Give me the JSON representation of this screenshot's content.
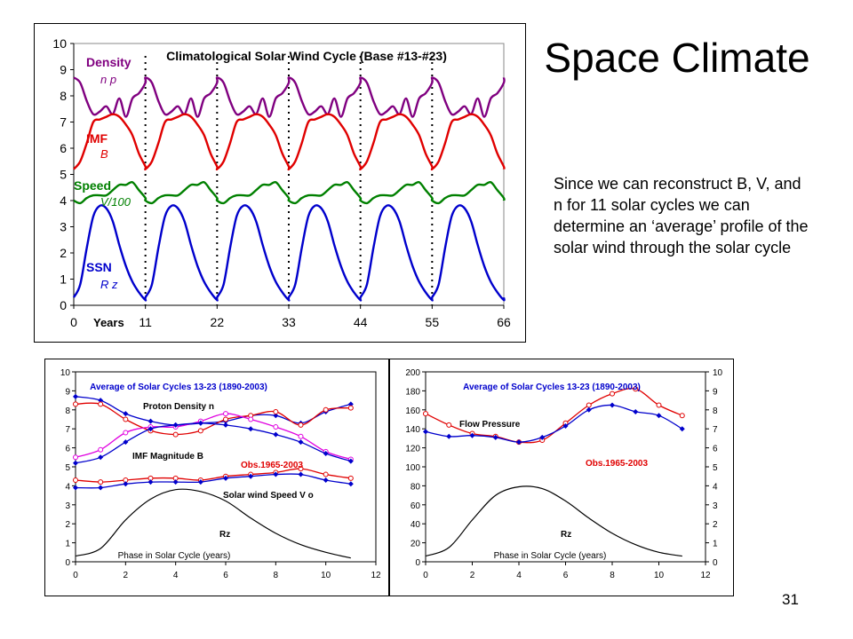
{
  "slide": {
    "title": "Space Climate",
    "body": "Since we can reconstruct B, V, and n for 11 solar cycles we can determine an ‘average’ profile of the solar wind through the solar cycle",
    "page_number": "31"
  },
  "chart_data": [
    {
      "type": "line",
      "title": "Climatological Solar Wind Cycle (Base #13-#23)",
      "xlabel": "Years",
      "ylabel": "",
      "xlim": [
        0,
        66
      ],
      "ylim": [
        0,
        10
      ],
      "x_ticks": [
        "0",
        "11",
        "22",
        "33",
        "44",
        "55",
        "66"
      ],
      "y_ticks": [
        "0",
        "1",
        "2",
        "3",
        "4",
        "5",
        "6",
        "7",
        "8",
        "9",
        "10"
      ],
      "cycle_markers": [
        11,
        22,
        33,
        44,
        55
      ],
      "grid": false,
      "x_phase": [
        0,
        1,
        2,
        3,
        4,
        5,
        6,
        7,
        8,
        9,
        10,
        11
      ],
      "series": [
        {
          "name": "Density",
          "symbol": "n p",
          "color": "#800080",
          "values": [
            8.7,
            8.5,
            7.8,
            7.3,
            7.4,
            7.6,
            7.3,
            7.9,
            7.2,
            7.9,
            8.1,
            8.5
          ]
        },
        {
          "name": "IMF",
          "symbol": "B",
          "color": "#e00000",
          "values": [
            5.2,
            5.5,
            6.2,
            7.0,
            7.1,
            7.2,
            7.3,
            7.2,
            6.9,
            6.5,
            5.8,
            5.3
          ]
        },
        {
          "name": "Speed",
          "symbol": "V/100",
          "color": "#008000",
          "values": [
            4.0,
            3.9,
            4.1,
            4.2,
            4.2,
            4.2,
            4.4,
            4.6,
            4.6,
            4.7,
            4.4,
            4.1
          ]
        },
        {
          "name": "SSN",
          "symbol": "R z",
          "color": "#0000cc",
          "values": [
            0.3,
            0.8,
            2.2,
            3.4,
            3.8,
            3.7,
            3.2,
            2.3,
            1.5,
            0.9,
            0.5,
            0.2
          ]
        }
      ]
    },
    {
      "type": "line",
      "title": "Average of Solar Cycles 13-23 (1890-2003)",
      "xlabel": "Phase in Solar Cycle (years)",
      "ylabel": "",
      "xlim": [
        0,
        12
      ],
      "ylim": [
        0,
        10
      ],
      "x_ticks": [
        "0",
        "2",
        "4",
        "6",
        "8",
        "10",
        "12"
      ],
      "y_ticks": [
        "0",
        "1",
        "2",
        "3",
        "4",
        "5",
        "6",
        "7",
        "8",
        "9",
        "10"
      ],
      "x": [
        0,
        1,
        2,
        3,
        4,
        5,
        6,
        7,
        8,
        9,
        10,
        11
      ],
      "annotations": [
        "Proton Density n",
        "IMF Magnitude B",
        "Obs.1965-2003",
        "Solar wind Speed V o",
        "Rz"
      ],
      "series": [
        {
          "color": "#0000cc",
          "values": [
            8.7,
            8.5,
            7.8,
            7.4,
            7.2,
            7.3,
            7.4,
            7.7,
            7.7,
            7.3,
            7.9,
            8.3
          ]
        },
        {
          "color": "#e00000",
          "values": [
            8.3,
            8.3,
            7.5,
            6.9,
            6.7,
            6.9,
            7.5,
            7.7,
            7.9,
            7.2,
            8.0,
            8.1
          ]
        },
        {
          "color": "#e000e0",
          "values": [
            5.5,
            5.9,
            6.8,
            7.1,
            7.1,
            7.4,
            7.8,
            7.5,
            7.1,
            6.6,
            5.8,
            5.4
          ]
        },
        {
          "color": "#0000cc",
          "values": [
            5.2,
            5.5,
            6.3,
            7.0,
            7.2,
            7.3,
            7.2,
            7.0,
            6.7,
            6.3,
            5.7,
            5.3
          ]
        },
        {
          "color": "#e00000",
          "values": [
            4.3,
            4.2,
            4.3,
            4.4,
            4.4,
            4.3,
            4.5,
            4.6,
            4.7,
            4.9,
            4.6,
            4.4
          ]
        },
        {
          "color": "#0000cc",
          "values": [
            3.9,
            3.9,
            4.1,
            4.2,
            4.2,
            4.2,
            4.4,
            4.5,
            4.6,
            4.6,
            4.3,
            4.1
          ]
        },
        {
          "color": "#000000",
          "values": [
            0.3,
            0.7,
            2.2,
            3.3,
            3.8,
            3.7,
            3.2,
            2.3,
            1.5,
            0.9,
            0.5,
            0.2
          ]
        }
      ]
    },
    {
      "type": "line",
      "title": "Average of Solar Cycles 13-23 (1890-2003)",
      "xlabel": "Phase in Solar Cycle (years)",
      "ylabel": "",
      "xlim": [
        0,
        12
      ],
      "ylim": [
        0,
        200
      ],
      "y2lim": [
        0,
        10
      ],
      "x_ticks": [
        "0",
        "2",
        "4",
        "6",
        "8",
        "10",
        "12"
      ],
      "y_ticks": [
        "0",
        "20",
        "40",
        "60",
        "80",
        "100",
        "120",
        "140",
        "160",
        "180",
        "200"
      ],
      "y2_ticks": [
        "0",
        "1",
        "2",
        "3",
        "4",
        "5",
        "6",
        "7",
        "8",
        "9",
        "10"
      ],
      "x": [
        0,
        1,
        2,
        3,
        4,
        5,
        6,
        7,
        8,
        9,
        10,
        11
      ],
      "annotations": [
        "Flow Pressure",
        "Obs.1965-2003",
        "Rz"
      ],
      "series": [
        {
          "color": "#e00000",
          "values": [
            156,
            144,
            135,
            132,
            126,
            128,
            146,
            165,
            177,
            182,
            165,
            154
          ]
        },
        {
          "color": "#0000cc",
          "values": [
            137,
            132,
            133,
            131,
            126,
            131,
            143,
            160,
            165,
            158,
            154,
            140
          ]
        },
        {
          "color": "#000000",
          "values": [
            6,
            15,
            44,
            70,
            79,
            77,
            64,
            46,
            30,
            18,
            10,
            6
          ]
        }
      ]
    }
  ]
}
